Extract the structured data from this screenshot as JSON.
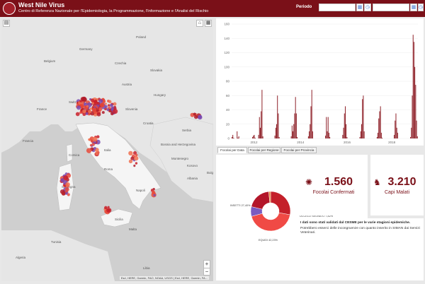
{
  "header": {
    "title": "West Nile Virus",
    "subtitle": "Centro di Referenza Nazionale per l'Epidemiologia, la Programmazione, l'Informazione e l'Analisi del Rischio",
    "period_label": "Periodo",
    "accent": "#7a1018"
  },
  "map": {
    "labels": [
      "Belgium",
      "Germany",
      "Poland",
      "Czechia",
      "Slovakia",
      "Austria",
      "Hungary",
      "Switzerland",
      "France",
      "Slovenia",
      "Croatia",
      "Serbia",
      "Bosnia and Herzegovina",
      "Montenegro",
      "Kosovo",
      "Albania",
      "Italia",
      "Bulgaria",
      "Francia",
      "Corsica",
      "Roma",
      "Napoli",
      "Sardegna",
      "Sicilia",
      "Tunisia",
      "Algeria",
      "Malta",
      "Libia"
    ],
    "attribution": "Esri, HERE, Garmin, FAO, NOAA, USGS | Esri, HERE, Garmin, FA...",
    "zoom_in": "+",
    "zoom_out": "−"
  },
  "chart_data": {
    "type": "bar",
    "ylim": [
      0,
      160
    ],
    "yticks": [
      0,
      20,
      40,
      60,
      80,
      100,
      120,
      140,
      160
    ],
    "xticks": [
      "2012",
      "2014",
      "2016",
      "2018"
    ],
    "values": [
      2,
      5,
      1,
      0,
      0,
      0,
      10,
      1,
      3,
      0,
      0,
      0,
      0,
      0,
      0,
      0,
      0,
      0,
      0,
      0,
      0,
      0,
      0,
      0,
      2,
      4,
      5,
      1,
      0,
      0,
      0,
      5,
      30,
      15,
      38,
      68,
      3,
      0,
      0,
      0,
      0,
      0,
      0,
      0,
      0,
      0,
      0,
      0,
      0,
      0,
      4,
      15,
      20,
      60,
      35,
      2,
      0,
      0,
      0,
      0,
      0,
      0,
      0,
      0,
      0,
      0,
      0,
      0,
      0,
      3,
      18,
      10,
      20,
      35,
      58,
      35,
      2,
      0,
      0,
      0,
      0,
      0,
      0,
      0,
      0,
      0,
      0,
      0,
      0,
      3,
      10,
      20,
      45,
      68,
      10,
      0,
      0,
      0,
      0,
      0,
      0,
      0,
      0,
      0,
      0,
      0,
      0,
      0,
      0,
      4,
      30,
      10,
      30,
      8,
      2,
      0,
      0,
      0,
      0,
      0,
      0,
      0,
      0,
      0,
      0,
      0,
      0,
      0,
      0,
      5,
      15,
      35,
      45,
      20,
      2,
      0,
      0,
      0,
      0,
      0,
      0,
      0,
      0,
      0,
      0,
      0,
      0,
      0,
      0,
      2,
      10,
      20,
      55,
      60,
      10,
      0,
      0,
      0,
      0,
      0,
      0,
      0,
      0,
      0,
      0,
      0,
      0,
      0,
      0,
      2,
      8,
      28,
      38,
      45,
      8,
      1,
      0,
      0,
      0,
      0,
      0,
      0,
      0,
      0,
      0,
      0,
      0,
      0,
      0,
      5,
      25,
      35,
      15,
      8,
      0,
      0,
      0,
      0,
      0,
      0,
      0,
      0,
      0,
      0,
      0,
      0,
      0,
      0,
      2,
      15,
      60,
      145,
      135,
      100,
      75,
      25,
      3
    ],
    "bar_color": "#8b1a22"
  },
  "tabs": [
    {
      "label": "Focolai per Data",
      "active": true
    },
    {
      "label": "Focolai per Regione",
      "active": false
    },
    {
      "label": "Focolai per Provincia",
      "active": false
    }
  ],
  "donut": {
    "type": "pie",
    "slices": [
      {
        "label": "INSETTI 27,40%",
        "value": 27.4,
        "color": "#c4202a"
      },
      {
        "label": "EQUIDI 42,23%",
        "value": 42.23,
        "color": "#f04a45"
      },
      {
        "label": "UCCELLI SEGNATO 7,82%",
        "value": 7.82,
        "color": "#7a5ac0"
      },
      {
        "label": "UCCELLI SORVEGLIO 19,42%",
        "value": 19.42,
        "color": "#b3162a"
      },
      {
        "label": "UMANI 1,47%",
        "value": 1.47,
        "color": "#e88a40"
      }
    ]
  },
  "kpis": [
    {
      "value": "1.560",
      "label": "Focolai Confermati",
      "icon": "virus-icon"
    },
    {
      "value": "3.210",
      "label": "Capi Malati",
      "icon": "cattle-icon"
    }
  ],
  "note": {
    "bold": "I dati sono stati validati dal CESME per le varie stagioni epidemiche.",
    "text": "Potrebbero esserci delle incongruenze con quanto inserito in SIMAN dai Servizi Veterinari."
  }
}
